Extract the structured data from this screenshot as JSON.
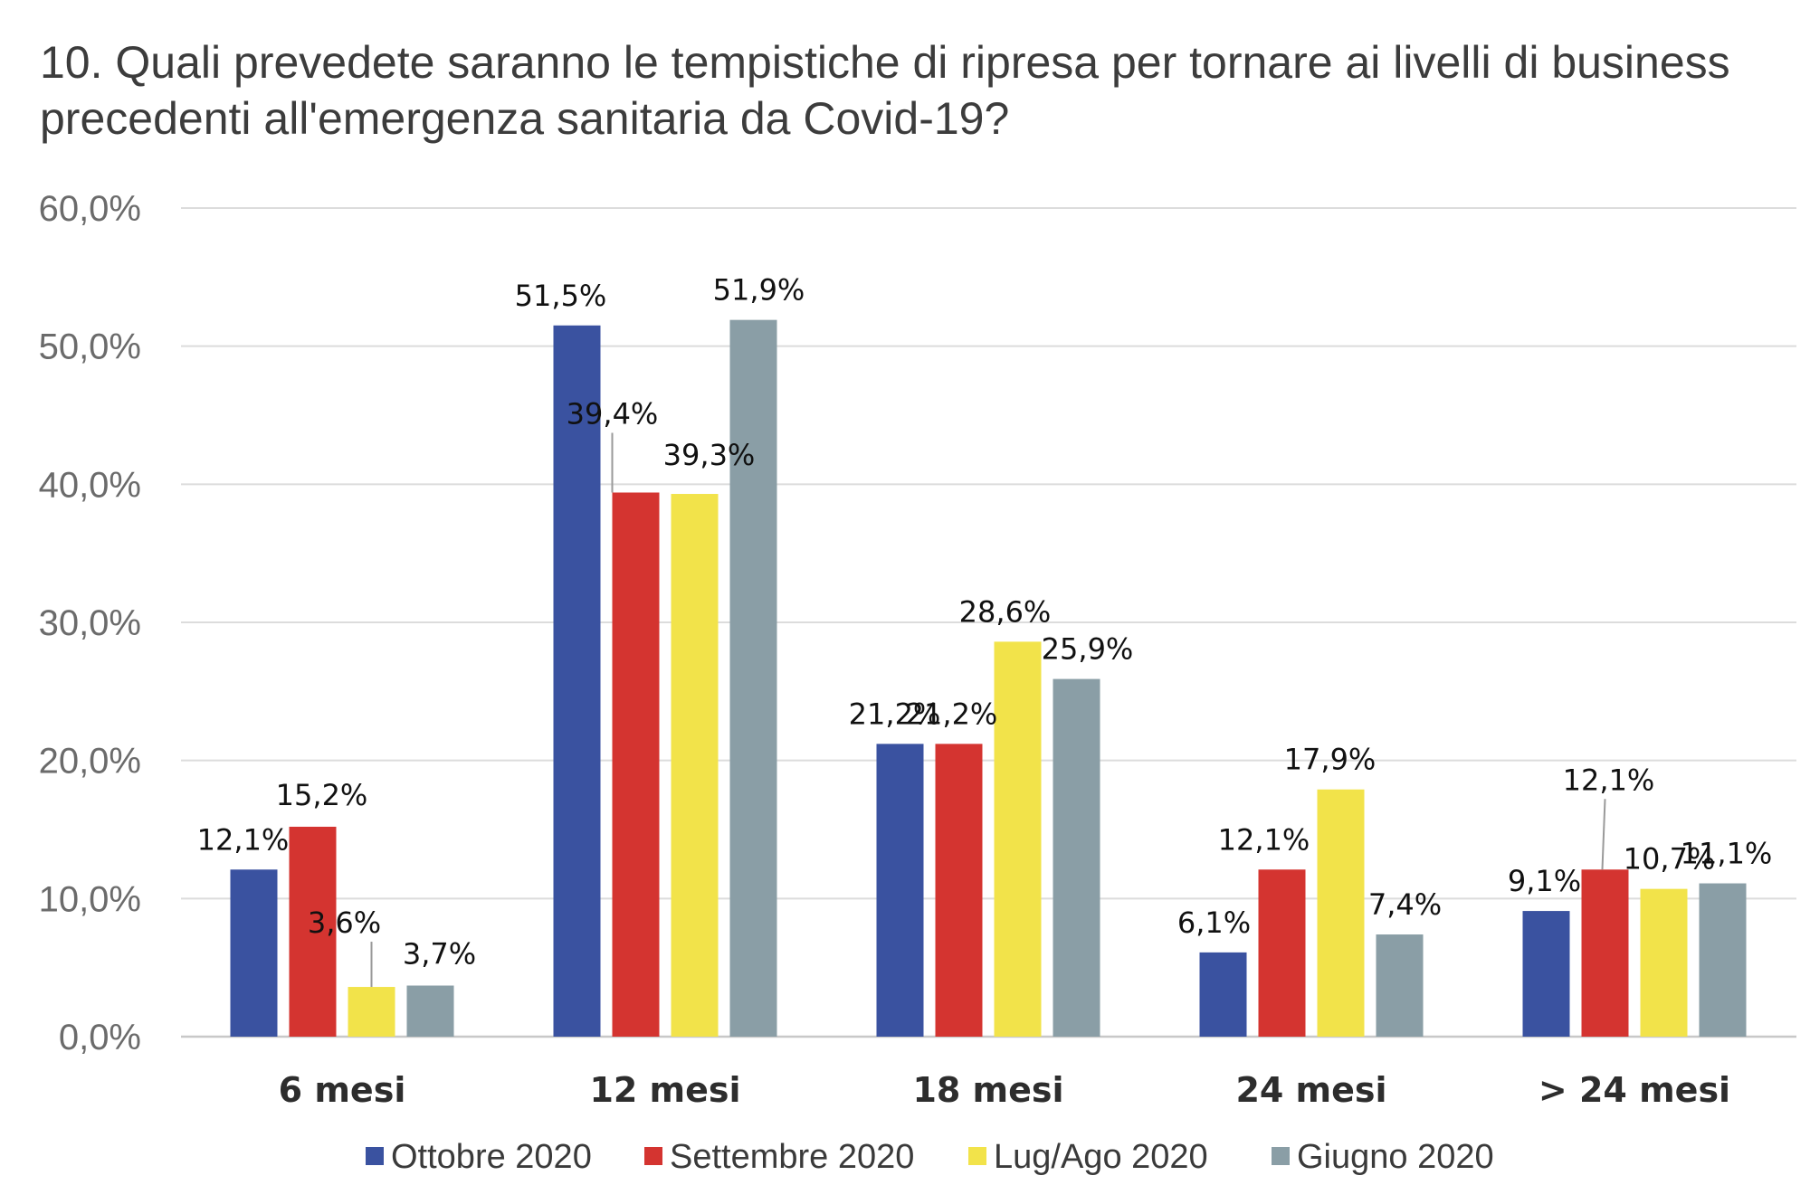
{
  "chart_data": {
    "type": "bar",
    "title": "10. Quali prevedete saranno le tempistiche di ripresa per tornare ai livelli di business precedenti all'emergenza sanitaria da Covid-19?",
    "categories": [
      "6 mesi",
      "12 mesi",
      "18 mesi",
      "24 mesi",
      "> 24 mesi"
    ],
    "series": [
      {
        "name": "Ottobre 2020",
        "color": "#3a52a0",
        "values": [
          12.1,
          51.5,
          21.2,
          6.1,
          9.1
        ],
        "labels": [
          "12,1%",
          "51,5%",
          "21,2%",
          "6,1%",
          "9,1%"
        ]
      },
      {
        "name": "Settembre 2020",
        "color": "#d43430",
        "values": [
          15.2,
          39.4,
          21.2,
          12.1,
          12.1
        ],
        "labels": [
          "15,2%",
          "39,4%",
          "21,2%",
          "12,1%",
          "12,1%"
        ]
      },
      {
        "name": "Lug/Ago 2020",
        "color": "#f2e34a",
        "values": [
          3.6,
          39.3,
          28.6,
          17.9,
          10.7
        ],
        "labels": [
          "3,6%",
          "39,3%",
          "28,6%",
          "17,9%",
          "10,7%"
        ]
      },
      {
        "name": "Giugno 2020",
        "color": "#8a9ea6",
        "values": [
          3.7,
          51.9,
          25.9,
          7.4,
          11.1
        ],
        "labels": [
          "3,7%",
          "51,9%",
          "25,9%",
          "7,4%",
          "11,1%"
        ]
      }
    ],
    "ylim": [
      0,
      60
    ],
    "yticks": [
      "0,0%",
      "10,0%",
      "20,0%",
      "30,0%",
      "40,0%",
      "50,0%",
      "60,0%"
    ],
    "xlabel": "",
    "ylabel": "",
    "grid": true,
    "legend_position": "bottom"
  }
}
